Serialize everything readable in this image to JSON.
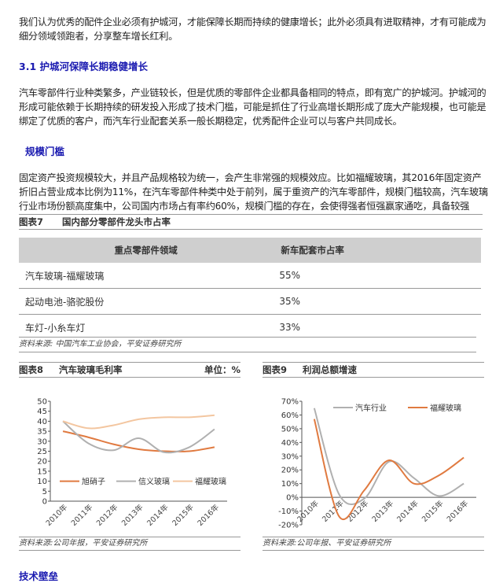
{
  "para1": "我们认为优秀的配件企业必须有护城河，才能保障长期而持续的健康增长；此外必须具有进取精神，才有可能成为细分领域领跑者，分享整车增长红利。",
  "heading1": "3.1 护城河保障长期稳健增长",
  "para2": "汽车零部件行业种类繁多，产业链较长，但是优质的零部件企业都具备相同的特点，即有宽广的护城河。护城河的形成可能依赖于长期持续的研发投入形成了技术门槛，可能是抓住了行业高增长期形成了庞大产能规模，也可能是绑定了优质的客户，而汽车行业配套关系一般长期稳定，优秀配件企业可以与客户共同成长。",
  "heading2": "规模门槛",
  "para3": "固定资产投资规模较大，并且产品规格较为统一，会产生非常强的规模效应。比如福耀玻璃，其2016年固定资产折旧占营业成本比例为11%，在汽车零部件种类中处于前列，属于重资产的汽车零部件，规模门槛较高，汽车玻璃行业市场份额高度集中，公司国内市场占有率约60%，规模门槛的存在，会使得强者恒强赢家通吃，具备较强",
  "table7": {
    "label": "图表7",
    "title": "国内部分零部件龙头市占率",
    "headers": [
      "重点零部件领域",
      "新车配套市占率"
    ],
    "rows": [
      [
        "汽车玻璃-福耀玻璃",
        "55%"
      ],
      [
        "起动电池-骆驼股份",
        "35%"
      ],
      [
        "车灯-小糸车灯",
        "33%"
      ]
    ],
    "source": "资料来源: 中国汽车工业协会，平安证券研究所"
  },
  "heading3": "技术壁垒",
  "chart_data": [
    {
      "label": "图表8",
      "title": "汽车玻璃毛利率",
      "unit": "单位：%",
      "type": "line",
      "categories": [
        "2010年",
        "2011年",
        "2012年",
        "2013年",
        "2014年",
        "2015年",
        "2016年"
      ],
      "ylim": [
        0,
        50
      ],
      "yticks": [
        0,
        5,
        10,
        15,
        20,
        25,
        30,
        35,
        40,
        45,
        50
      ],
      "ytick_labels": [
        "0",
        "5",
        "10",
        "15",
        "20",
        "25",
        "30",
        "35",
        "40",
        "45",
        "50"
      ],
      "legend": "inside-center",
      "series": [
        {
          "name": "旭硝子",
          "color": "#e07a40",
          "values": [
            35,
            32,
            28.5,
            26,
            25,
            25,
            27
          ]
        },
        {
          "name": "信义玻璃",
          "color": "#b0b0b0",
          "values": [
            40,
            29,
            25.5,
            31.5,
            24.5,
            27,
            36
          ]
        },
        {
          "name": "福耀玻璃",
          "color": "#f3c6a0",
          "values": [
            40,
            36.5,
            38,
            41,
            42,
            42,
            43
          ]
        }
      ],
      "source": "资料来源:公司年报，平安证券研究所"
    },
    {
      "label": "图表9",
      "title": "利润总额增速",
      "type": "line",
      "categories": [
        "2010年",
        "2011年",
        "2012年",
        "2013年",
        "2014年",
        "2015年",
        "2016年"
      ],
      "ylim": [
        -20,
        70
      ],
      "yticks": [
        -20,
        -10,
        0,
        10,
        20,
        30,
        40,
        50,
        60,
        70
      ],
      "ytick_labels": [
        "-20%",
        "-10%",
        "0%",
        "10%",
        "20%",
        "30%",
        "40%",
        "50%",
        "60%",
        "70%"
      ],
      "legend": "top",
      "series": [
        {
          "name": "汽车行业",
          "color": "#b0b0b0",
          "values": [
            65,
            2,
            -1,
            26,
            14,
            1,
            10
          ]
        },
        {
          "name": "福耀玻璃",
          "color": "#e07a40",
          "values": [
            57,
            -14,
            5,
            27,
            10,
            16,
            29
          ]
        }
      ],
      "source": "资料来源:公司年报、平安证券研究所"
    }
  ]
}
